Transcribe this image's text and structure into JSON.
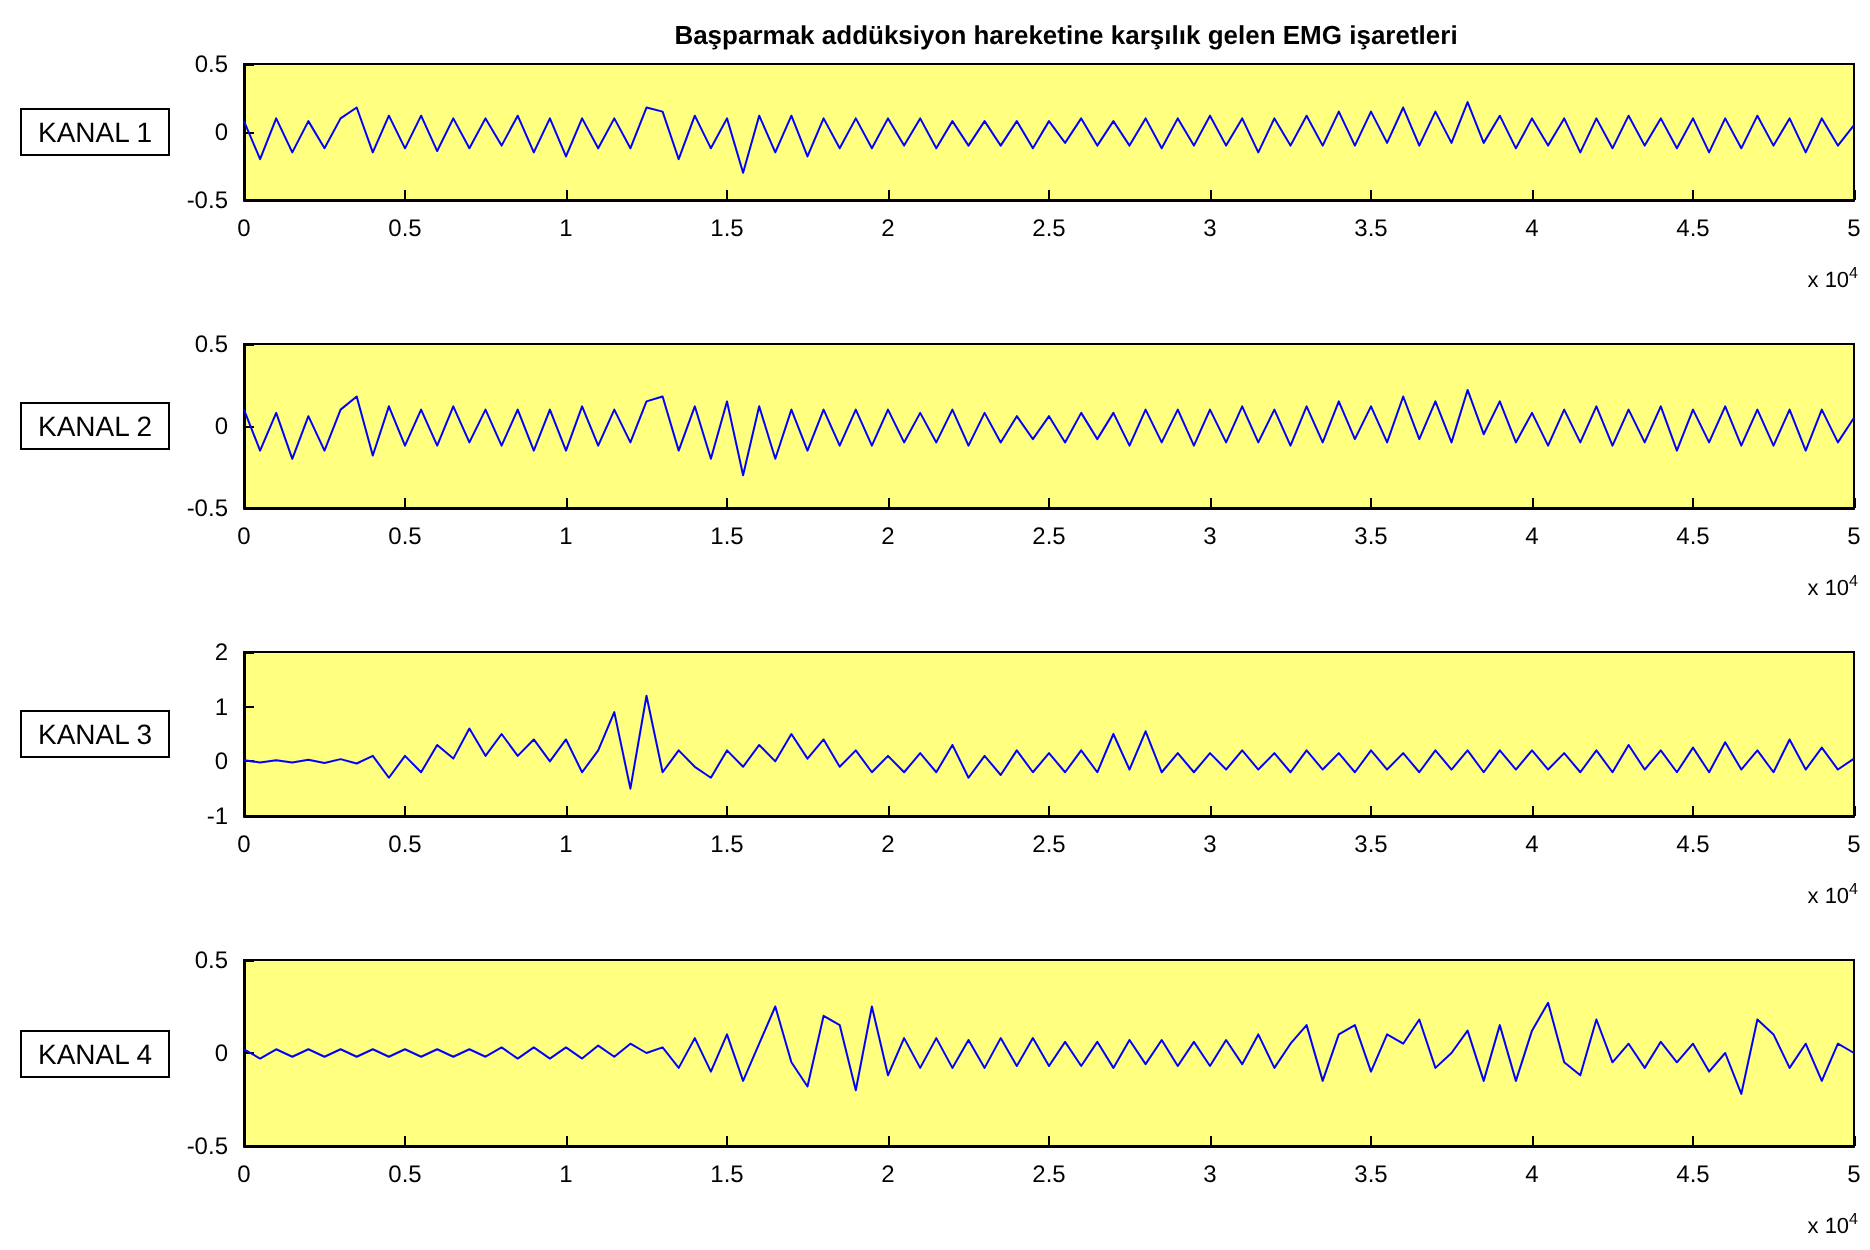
{
  "chart_data": [
    {
      "type": "line",
      "title": "Başparmak addüksiyon hareketine karşılık gelen EMG işaretleri",
      "ylabel": "KANAL 1",
      "annotations": [
        "x 10$^{4}$"
      ],
      "x": [
        0,
        0.05,
        0.1,
        0.15,
        0.2,
        0.25,
        0.3,
        0.35,
        0.4,
        0.45,
        0.5,
        0.55,
        0.6,
        0.65,
        0.7,
        0.75,
        0.8,
        0.85,
        0.9,
        0.95,
        1,
        1.05,
        1.1,
        1.15,
        1.2,
        1.25,
        1.3,
        1.35,
        1.4,
        1.45,
        1.5,
        1.55,
        1.6,
        1.65,
        1.7,
        1.75,
        1.8,
        1.85,
        1.9,
        1.95,
        2,
        2.05,
        2.1,
        2.15,
        2.2,
        2.25,
        2.3,
        2.35,
        2.4,
        2.45,
        2.5,
        2.55,
        2.6,
        2.65,
        2.7,
        2.75,
        2.8,
        2.85,
        2.9,
        2.95,
        3,
        3.05,
        3.1,
        3.15,
        3.2,
        3.25,
        3.3,
        3.35,
        3.4,
        3.45,
        3.5,
        3.55,
        3.6,
        3.65,
        3.7,
        3.75,
        3.8,
        3.85,
        3.9,
        3.95,
        4,
        4.05,
        4.1,
        4.15,
        4.2,
        4.25,
        4.3,
        4.35,
        4.4,
        4.45,
        4.5,
        4.55,
        4.6,
        4.65,
        4.7,
        4.75,
        4.8,
        4.85,
        4.9,
        4.95,
        5
      ],
      "series": [
        {
          "color": "#0000ff",
          "values": [
            0.08,
            -0.2,
            0.1,
            -0.15,
            0.08,
            -0.12,
            0.1,
            0.18,
            -0.15,
            0.12,
            -0.12,
            0.12,
            -0.14,
            0.1,
            -0.12,
            0.1,
            -0.1,
            0.12,
            -0.15,
            0.1,
            -0.18,
            0.1,
            -0.12,
            0.1,
            -0.12,
            0.18,
            0.15,
            -0.2,
            0.12,
            -0.12,
            0.1,
            -0.3,
            0.12,
            -0.15,
            0.12,
            -0.18,
            0.1,
            -0.12,
            0.1,
            -0.12,
            0.1,
            -0.1,
            0.1,
            -0.12,
            0.08,
            -0.1,
            0.08,
            -0.1,
            0.08,
            -0.12,
            0.08,
            -0.08,
            0.1,
            -0.1,
            0.08,
            -0.1,
            0.1,
            -0.12,
            0.1,
            -0.1,
            0.12,
            -0.1,
            0.1,
            -0.15,
            0.1,
            -0.1,
            0.12,
            -0.1,
            0.15,
            -0.1,
            0.15,
            -0.08,
            0.18,
            -0.1,
            0.15,
            -0.08,
            0.22,
            -0.08,
            0.12,
            -0.12,
            0.1,
            -0.1,
            0.1,
            -0.15,
            0.1,
            -0.12,
            0.12,
            -0.1,
            0.1,
            -0.12,
            0.1,
            -0.15,
            0.1,
            -0.12,
            0.12,
            -0.1,
            0.1,
            -0.15,
            0.1,
            -0.1,
            0.05
          ]
        }
      ],
      "xlim": [
        0,
        5
      ],
      "xticks": [
        0,
        0.5,
        1,
        1.5,
        2,
        2.5,
        3,
        3.5,
        4,
        4.5,
        5
      ],
      "ylim": [
        -0.5,
        0.5
      ],
      "yticks": [
        -0.5,
        0,
        0.5
      ],
      "grid": false
    },
    {
      "type": "line",
      "ylabel": "KANAL 2",
      "annotations": [
        "x 10$^{4}$"
      ],
      "x": [
        0,
        0.05,
        0.1,
        0.15,
        0.2,
        0.25,
        0.3,
        0.35,
        0.4,
        0.45,
        0.5,
        0.55,
        0.6,
        0.65,
        0.7,
        0.75,
        0.8,
        0.85,
        0.9,
        0.95,
        1,
        1.05,
        1.1,
        1.15,
        1.2,
        1.25,
        1.3,
        1.35,
        1.4,
        1.45,
        1.5,
        1.55,
        1.6,
        1.65,
        1.7,
        1.75,
        1.8,
        1.85,
        1.9,
        1.95,
        2,
        2.05,
        2.1,
        2.15,
        2.2,
        2.25,
        2.3,
        2.35,
        2.4,
        2.45,
        2.5,
        2.55,
        2.6,
        2.65,
        2.7,
        2.75,
        2.8,
        2.85,
        2.9,
        2.95,
        3,
        3.05,
        3.1,
        3.15,
        3.2,
        3.25,
        3.3,
        3.35,
        3.4,
        3.45,
        3.5,
        3.55,
        3.6,
        3.65,
        3.7,
        3.75,
        3.8,
        3.85,
        3.9,
        3.95,
        4,
        4.05,
        4.1,
        4.15,
        4.2,
        4.25,
        4.3,
        4.35,
        4.4,
        4.45,
        4.5,
        4.55,
        4.6,
        4.65,
        4.7,
        4.75,
        4.8,
        4.85,
        4.9,
        4.95,
        5
      ],
      "series": [
        {
          "color": "#0000ff",
          "values": [
            0.1,
            -0.15,
            0.08,
            -0.2,
            0.06,
            -0.15,
            0.1,
            0.18,
            -0.18,
            0.12,
            -0.12,
            0.1,
            -0.12,
            0.12,
            -0.1,
            0.1,
            -0.12,
            0.1,
            -0.15,
            0.1,
            -0.15,
            0.12,
            -0.12,
            0.1,
            -0.1,
            0.15,
            0.18,
            -0.15,
            0.12,
            -0.2,
            0.15,
            -0.3,
            0.12,
            -0.2,
            0.1,
            -0.15,
            0.1,
            -0.12,
            0.1,
            -0.12,
            0.1,
            -0.1,
            0.08,
            -0.1,
            0.1,
            -0.12,
            0.08,
            -0.1,
            0.06,
            -0.08,
            0.06,
            -0.1,
            0.08,
            -0.08,
            0.08,
            -0.12,
            0.1,
            -0.1,
            0.1,
            -0.12,
            0.1,
            -0.1,
            0.12,
            -0.1,
            0.1,
            -0.12,
            0.12,
            -0.1,
            0.15,
            -0.08,
            0.12,
            -0.1,
            0.18,
            -0.08,
            0.15,
            -0.1,
            0.22,
            -0.05,
            0.15,
            -0.1,
            0.08,
            -0.12,
            0.1,
            -0.1,
            0.12,
            -0.12,
            0.1,
            -0.1,
            0.12,
            -0.15,
            0.1,
            -0.1,
            0.12,
            -0.12,
            0.1,
            -0.12,
            0.1,
            -0.15,
            0.1,
            -0.1,
            0.05
          ]
        }
      ],
      "xlim": [
        0,
        5
      ],
      "xticks": [
        0,
        0.5,
        1,
        1.5,
        2,
        2.5,
        3,
        3.5,
        4,
        4.5,
        5
      ],
      "ylim": [
        -0.5,
        0.5
      ],
      "yticks": [
        -0.5,
        0,
        0.5
      ],
      "grid": false
    },
    {
      "type": "line",
      "ylabel": "KANAL 3",
      "annotations": [
        "x 10$^{4}$"
      ],
      "x": [
        0,
        0.05,
        0.1,
        0.15,
        0.2,
        0.25,
        0.3,
        0.35,
        0.4,
        0.45,
        0.5,
        0.55,
        0.6,
        0.65,
        0.7,
        0.75,
        0.8,
        0.85,
        0.9,
        0.95,
        1,
        1.05,
        1.1,
        1.15,
        1.2,
        1.25,
        1.3,
        1.35,
        1.4,
        1.45,
        1.5,
        1.55,
        1.6,
        1.65,
        1.7,
        1.75,
        1.8,
        1.85,
        1.9,
        1.95,
        2,
        2.05,
        2.1,
        2.15,
        2.2,
        2.25,
        2.3,
        2.35,
        2.4,
        2.45,
        2.5,
        2.55,
        2.6,
        2.65,
        2.7,
        2.75,
        2.8,
        2.85,
        2.9,
        2.95,
        3,
        3.05,
        3.1,
        3.15,
        3.2,
        3.25,
        3.3,
        3.35,
        3.4,
        3.45,
        3.5,
        3.55,
        3.6,
        3.65,
        3.7,
        3.75,
        3.8,
        3.85,
        3.9,
        3.95,
        4,
        4.05,
        4.1,
        4.15,
        4.2,
        4.25,
        4.3,
        4.35,
        4.4,
        4.45,
        4.5,
        4.55,
        4.6,
        4.65,
        4.7,
        4.75,
        4.8,
        4.85,
        4.9,
        4.95,
        5
      ],
      "series": [
        {
          "color": "#0000ff",
          "values": [
            0.02,
            -0.02,
            0.02,
            -0.02,
            0.03,
            -0.03,
            0.04,
            -0.04,
            0.1,
            -0.3,
            0.1,
            -0.2,
            0.3,
            0.05,
            0.6,
            0.1,
            0.5,
            0.1,
            0.4,
            0.0,
            0.4,
            -0.2,
            0.2,
            0.9,
            -0.5,
            1.2,
            -0.2,
            0.2,
            -0.1,
            -0.3,
            0.2,
            -0.1,
            0.3,
            0.0,
            0.5,
            0.05,
            0.4,
            -0.1,
            0.2,
            -0.2,
            0.1,
            -0.2,
            0.15,
            -0.2,
            0.3,
            -0.3,
            0.1,
            -0.25,
            0.2,
            -0.2,
            0.15,
            -0.2,
            0.2,
            -0.2,
            0.5,
            -0.15,
            0.55,
            -0.2,
            0.15,
            -0.2,
            0.15,
            -0.15,
            0.2,
            -0.15,
            0.15,
            -0.2,
            0.2,
            -0.15,
            0.15,
            -0.2,
            0.2,
            -0.15,
            0.15,
            -0.2,
            0.2,
            -0.15,
            0.2,
            -0.2,
            0.2,
            -0.15,
            0.2,
            -0.15,
            0.15,
            -0.2,
            0.2,
            -0.2,
            0.3,
            -0.15,
            0.2,
            -0.2,
            0.25,
            -0.2,
            0.35,
            -0.15,
            0.2,
            -0.2,
            0.4,
            -0.15,
            0.25,
            -0.15,
            0.05
          ]
        }
      ],
      "xlim": [
        0,
        5
      ],
      "xticks": [
        0,
        0.5,
        1,
        1.5,
        2,
        2.5,
        3,
        3.5,
        4,
        4.5,
        5
      ],
      "ylim": [
        -1,
        2
      ],
      "yticks": [
        -1,
        0,
        1,
        2
      ],
      "grid": false
    },
    {
      "type": "line",
      "ylabel": "KANAL 4",
      "annotations": [
        "x 10$^{4}$"
      ],
      "x": [
        0,
        0.05,
        0.1,
        0.15,
        0.2,
        0.25,
        0.3,
        0.35,
        0.4,
        0.45,
        0.5,
        0.55,
        0.6,
        0.65,
        0.7,
        0.75,
        0.8,
        0.85,
        0.9,
        0.95,
        1,
        1.05,
        1.1,
        1.15,
        1.2,
        1.25,
        1.3,
        1.35,
        1.4,
        1.45,
        1.5,
        1.55,
        1.6,
        1.65,
        1.7,
        1.75,
        1.8,
        1.85,
        1.9,
        1.95,
        2,
        2.05,
        2.1,
        2.15,
        2.2,
        2.25,
        2.3,
        2.35,
        2.4,
        2.45,
        2.5,
        2.55,
        2.6,
        2.65,
        2.7,
        2.75,
        2.8,
        2.85,
        2.9,
        2.95,
        3,
        3.05,
        3.1,
        3.15,
        3.2,
        3.25,
        3.3,
        3.35,
        3.4,
        3.45,
        3.5,
        3.55,
        3.6,
        3.65,
        3.7,
        3.75,
        3.8,
        3.85,
        3.9,
        3.95,
        4,
        4.05,
        4.1,
        4.15,
        4.2,
        4.25,
        4.3,
        4.35,
        4.4,
        4.45,
        4.5,
        4.55,
        4.6,
        4.65,
        4.7,
        4.75,
        4.8,
        4.85,
        4.9,
        4.95,
        5
      ],
      "series": [
        {
          "color": "#0000ff",
          "values": [
            0.02,
            -0.03,
            0.02,
            -0.02,
            0.02,
            -0.02,
            0.02,
            -0.02,
            0.02,
            -0.02,
            0.02,
            -0.02,
            0.02,
            -0.02,
            0.02,
            -0.02,
            0.03,
            -0.03,
            0.03,
            -0.03,
            0.03,
            -0.03,
            0.04,
            -0.02,
            0.05,
            0.0,
            0.03,
            -0.08,
            0.08,
            -0.1,
            0.1,
            -0.15,
            0.05,
            0.25,
            -0.05,
            -0.18,
            0.2,
            0.15,
            -0.2,
            0.25,
            -0.12,
            0.08,
            -0.08,
            0.08,
            -0.08,
            0.07,
            -0.08,
            0.08,
            -0.07,
            0.08,
            -0.07,
            0.06,
            -0.07,
            0.06,
            -0.08,
            0.07,
            -0.06,
            0.07,
            -0.07,
            0.06,
            -0.07,
            0.07,
            -0.06,
            0.1,
            -0.08,
            0.05,
            0.15,
            -0.15,
            0.1,
            0.15,
            -0.1,
            0.1,
            0.05,
            0.18,
            -0.08,
            0.0,
            0.12,
            -0.15,
            0.15,
            -0.15,
            0.12,
            0.27,
            -0.05,
            -0.12,
            0.18,
            -0.05,
            0.05,
            -0.08,
            0.06,
            -0.05,
            0.05,
            -0.1,
            0.0,
            -0.22,
            0.18,
            0.1,
            -0.08,
            0.05,
            -0.15,
            0.05,
            0.0
          ]
        }
      ],
      "xlim": [
        0,
        5
      ],
      "xticks": [
        0,
        0.5,
        1,
        1.5,
        2,
        2.5,
        3,
        3.5,
        4,
        4.5,
        5
      ],
      "ylim": [
        -0.5,
        0.5
      ],
      "yticks": [
        -0.5,
        0,
        0.5
      ],
      "grid": false
    }
  ]
}
